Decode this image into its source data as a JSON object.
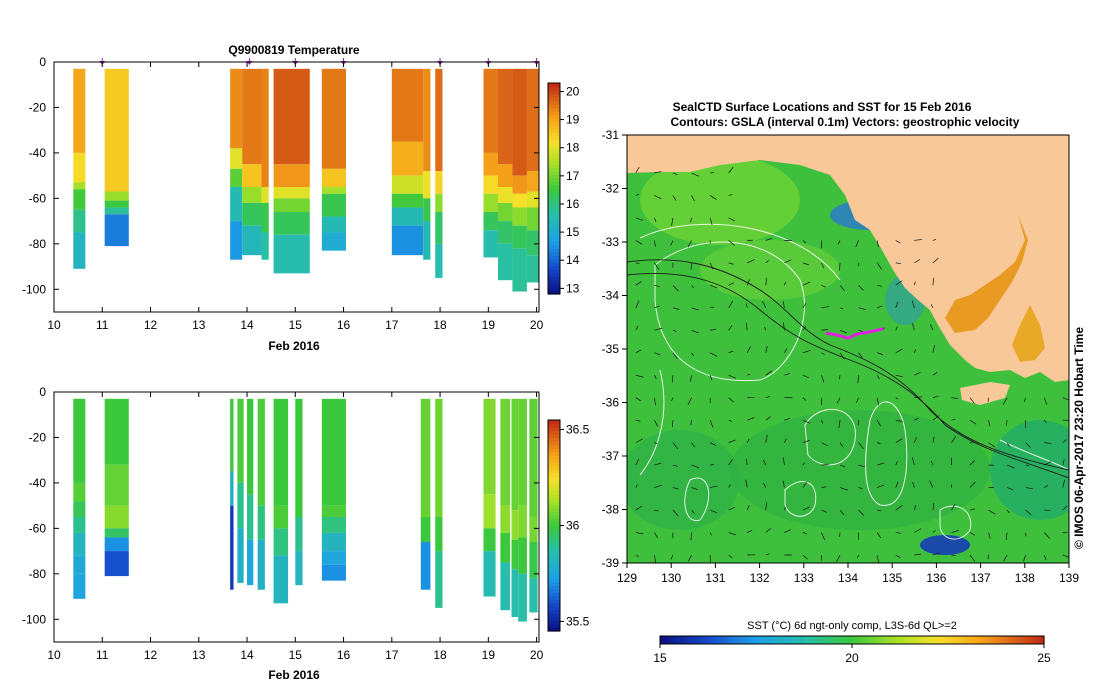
{
  "chart_data": [
    {
      "type": "heatmap",
      "title": "Q9900819  Temperature",
      "xlabel": "Feb 2016",
      "ylabel": "",
      "xlim": [
        10,
        20.05
      ],
      "ylim": [
        -110,
        0
      ],
      "x_ticks": [
        10,
        11,
        12,
        13,
        14,
        15,
        16,
        17,
        18,
        19,
        20
      ],
      "y_ticks": [
        0,
        -20,
        -40,
        -60,
        -80,
        -100
      ],
      "profile_markers_x": [
        11.0,
        14.05,
        15.0,
        16.0,
        18.0,
        19.0,
        20.0
      ],
      "colorbar": {
        "min": 12.8,
        "max": 20.3,
        "ticks": [
          13,
          14,
          15,
          16,
          17,
          18,
          19,
          20
        ]
      },
      "profiles": [
        {
          "x0": 10.4,
          "x1": 10.65,
          "max_depth": -91,
          "layers": [
            [
              -3,
              19.0
            ],
            [
              -40,
              18.3
            ],
            [
              -53,
              17.4
            ],
            [
              -56,
              16.6
            ],
            [
              -65,
              15.9
            ],
            [
              -75,
              15.3
            ],
            [
              -91,
              15.0
            ]
          ]
        },
        {
          "x0": 11.05,
          "x1": 11.55,
          "max_depth": -81,
          "layers": [
            [
              -3,
              18.5
            ],
            [
              -57,
              17.3
            ],
            [
              -61,
              16.5
            ],
            [
              -64,
              15.8
            ],
            [
              -67,
              14.3
            ],
            [
              -81,
              14.1
            ]
          ]
        },
        {
          "x0": 13.65,
          "x1": 13.9,
          "max_depth": -87,
          "layers": [
            [
              -3,
              19.3
            ],
            [
              -38,
              18.0
            ],
            [
              -47,
              16.8
            ],
            [
              -55,
              15.5
            ],
            [
              -70,
              14.6
            ],
            [
              -87,
              14.3
            ]
          ]
        },
        {
          "x0": 13.9,
          "x1": 14.3,
          "max_depth": -85,
          "layers": [
            [
              -3,
              19.5
            ],
            [
              -45,
              18.6
            ],
            [
              -55,
              17.3
            ],
            [
              -62,
              16.3
            ],
            [
              -72,
              15.4
            ],
            [
              -85,
              14.8
            ]
          ]
        },
        {
          "x0": 14.3,
          "x1": 14.45,
          "max_depth": -87,
          "layers": [
            [
              -3,
              19.4
            ],
            [
              -55,
              18.0
            ],
            [
              -62,
              16.4
            ],
            [
              -75,
              15.7
            ],
            [
              -87,
              15.2
            ]
          ]
        },
        {
          "x0": 14.55,
          "x1": 15.3,
          "max_depth": -93,
          "layers": [
            [
              -3,
              19.8
            ],
            [
              -45,
              19.2
            ],
            [
              -55,
              18.0
            ],
            [
              -60,
              17.0
            ],
            [
              -66,
              16.3
            ],
            [
              -76,
              15.6
            ],
            [
              -93,
              15.2
            ]
          ]
        },
        {
          "x0": 15.55,
          "x1": 16.05,
          "max_depth": -83,
          "layers": [
            [
              -3,
              19.5
            ],
            [
              -47,
              18.6
            ],
            [
              -55,
              17.4
            ],
            [
              -58,
              16.4
            ],
            [
              -68,
              15.5
            ],
            [
              -75,
              15.0
            ],
            [
              -83,
              14.9
            ]
          ]
        },
        {
          "x0": 17.0,
          "x1": 17.65,
          "max_depth": -85,
          "layers": [
            [
              -3,
              19.5
            ],
            [
              -35,
              18.9
            ],
            [
              -50,
              17.8
            ],
            [
              -58,
              16.6
            ],
            [
              -64,
              15.5
            ],
            [
              -72,
              14.5
            ],
            [
              -85,
              14.0
            ]
          ]
        },
        {
          "x0": 17.65,
          "x1": 17.8,
          "max_depth": -87,
          "layers": [
            [
              -3,
              19.3
            ],
            [
              -48,
              18.1
            ],
            [
              -60,
              16.4
            ],
            [
              -70,
              15.5
            ],
            [
              -87,
              14.6
            ]
          ]
        },
        {
          "x0": 17.9,
          "x1": 18.05,
          "max_depth": -95,
          "layers": [
            [
              -3,
              19.6
            ],
            [
              -48,
              18.4
            ],
            [
              -58,
              17.2
            ],
            [
              -66,
              16.2
            ],
            [
              -80,
              15.6
            ],
            [
              -95,
              15.3
            ]
          ]
        },
        {
          "x0": 18.9,
          "x1": 19.2,
          "max_depth": -86,
          "layers": [
            [
              -3,
              19.5
            ],
            [
              -40,
              19.1
            ],
            [
              -50,
              18.3
            ],
            [
              -58,
              17.3
            ],
            [
              -66,
              16.3
            ],
            [
              -74,
              15.6
            ],
            [
              -86,
              15.3
            ]
          ]
        },
        {
          "x0": 19.2,
          "x1": 19.5,
          "max_depth": -96,
          "layers": [
            [
              -3,
              19.7
            ],
            [
              -45,
              19.1
            ],
            [
              -55,
              18.1
            ],
            [
              -62,
              17.0
            ],
            [
              -70,
              16.2
            ],
            [
              -80,
              15.7
            ],
            [
              -96,
              15.5
            ]
          ]
        },
        {
          "x0": 19.5,
          "x1": 19.8,
          "max_depth": -101,
          "layers": [
            [
              -3,
              19.8
            ],
            [
              -50,
              19.2
            ],
            [
              -58,
              18.2
            ],
            [
              -64,
              17.2
            ],
            [
              -72,
              16.3
            ],
            [
              -82,
              15.8
            ],
            [
              -101,
              15.5
            ]
          ]
        },
        {
          "x0": 19.8,
          "x1": 20.05,
          "max_depth": -97,
          "layers": [
            [
              -3,
              19.6
            ],
            [
              -48,
              19.0
            ],
            [
              -57,
              18.0
            ],
            [
              -64,
              17.0
            ],
            [
              -74,
              16.2
            ],
            [
              -85,
              15.8
            ],
            [
              -97,
              15.6
            ]
          ]
        }
      ]
    },
    {
      "type": "heatmap",
      "title": "",
      "xlabel": "Feb 2016",
      "ylabel": "",
      "xlim": [
        10,
        20.05
      ],
      "ylim": [
        -110,
        0
      ],
      "x_ticks": [
        10,
        11,
        12,
        13,
        14,
        15,
        16,
        17,
        18,
        19,
        20
      ],
      "y_ticks": [
        0,
        -20,
        -40,
        -60,
        -80,
        -100
      ],
      "colorbar": {
        "min": 35.45,
        "max": 36.55,
        "ticks": [
          35.5,
          36,
          36.5
        ],
        "tick_labels": [
          "35.5",
          "36",
          "36.5"
        ]
      },
      "profiles": [
        {
          "x0": 10.4,
          "x1": 10.65,
          "max_depth": -91,
          "layers": [
            [
              -3,
              36.0
            ],
            [
              -40,
              36.03
            ],
            [
              -48,
              35.97
            ],
            [
              -55,
              35.9
            ],
            [
              -62,
              35.82
            ],
            [
              -72,
              35.77
            ],
            [
              -80,
              35.75
            ],
            [
              -91,
              35.74
            ]
          ]
        },
        {
          "x0": 11.05,
          "x1": 11.55,
          "max_depth": -81,
          "layers": [
            [
              -3,
              36.0
            ],
            [
              -32,
              36.05
            ],
            [
              -50,
              36.09
            ],
            [
              -60,
              35.95
            ],
            [
              -64,
              35.7
            ],
            [
              -70,
              35.6
            ],
            [
              -81,
              35.55
            ]
          ]
        },
        {
          "x0": 13.65,
          "x1": 13.72,
          "max_depth": -87,
          "layers": [
            [
              -3,
              36.0
            ],
            [
              -35,
              35.8
            ],
            [
              -50,
              35.55
            ],
            [
              -87,
              35.5
            ]
          ]
        },
        {
          "x0": 13.8,
          "x1": 13.93,
          "max_depth": -84,
          "layers": [
            [
              -3,
              36.02
            ],
            [
              -40,
              35.9
            ],
            [
              -60,
              35.8
            ],
            [
              -84,
              35.75
            ]
          ]
        },
        {
          "x0": 14.0,
          "x1": 14.13,
          "max_depth": -85,
          "layers": [
            [
              -3,
              36.0
            ],
            [
              -45,
              35.9
            ],
            [
              -65,
              35.75
            ],
            [
              -85,
              35.72
            ]
          ]
        },
        {
          "x0": 14.22,
          "x1": 14.37,
          "max_depth": -87,
          "layers": [
            [
              -3,
              36.02
            ],
            [
              -50,
              35.92
            ],
            [
              -65,
              35.8
            ],
            [
              -87,
              35.76
            ]
          ]
        },
        {
          "x0": 14.55,
          "x1": 14.85,
          "max_depth": -93,
          "layers": [
            [
              -3,
              36.0
            ],
            [
              -50,
              36.02
            ],
            [
              -60,
              35.92
            ],
            [
              -72,
              35.82
            ],
            [
              -93,
              35.78
            ]
          ]
        },
        {
          "x0": 15.0,
          "x1": 15.15,
          "max_depth": -85,
          "layers": [
            [
              -3,
              36.0
            ],
            [
              -55,
              35.9
            ],
            [
              -70,
              35.82
            ],
            [
              -85,
              35.78
            ]
          ]
        },
        {
          "x0": 15.55,
          "x1": 16.05,
          "max_depth": -83,
          "layers": [
            [
              -3,
              36.0
            ],
            [
              -50,
              36.02
            ],
            [
              -55,
              35.92
            ],
            [
              -62,
              35.82
            ],
            [
              -70,
              35.75
            ],
            [
              -76,
              35.7
            ],
            [
              -83,
              35.68
            ]
          ]
        },
        {
          "x0": 17.6,
          "x1": 17.8,
          "max_depth": -87,
          "layers": [
            [
              -3,
              36.05
            ],
            [
              -55,
              36.0
            ],
            [
              -66,
              35.7
            ],
            [
              -87,
              35.55
            ]
          ]
        },
        {
          "x0": 17.9,
          "x1": 18.05,
          "max_depth": -95,
          "layers": [
            [
              -3,
              36.06
            ],
            [
              -55,
              36.0
            ],
            [
              -70,
              35.9
            ],
            [
              -95,
              35.88
            ]
          ]
        },
        {
          "x0": 18.9,
          "x1": 19.15,
          "max_depth": -90,
          "layers": [
            [
              -3,
              36.08
            ],
            [
              -45,
              36.12
            ],
            [
              -60,
              36.0
            ],
            [
              -70,
              35.85
            ],
            [
              -90,
              35.78
            ]
          ]
        },
        {
          "x0": 19.25,
          "x1": 19.45,
          "max_depth": -96,
          "layers": [
            [
              -3,
              36.06
            ],
            [
              -50,
              36.1
            ],
            [
              -62,
              36.0
            ],
            [
              -75,
              35.86
            ],
            [
              -96,
              35.8
            ]
          ]
        },
        {
          "x0": 19.48,
          "x1": 19.62,
          "max_depth": -99,
          "layers": [
            [
              -3,
              36.05
            ],
            [
              -52,
              36.1
            ],
            [
              -65,
              36.0
            ],
            [
              -78,
              35.86
            ],
            [
              -99,
              35.8
            ]
          ]
        },
        {
          "x0": 19.62,
          "x1": 19.8,
          "max_depth": -101,
          "layers": [
            [
              -3,
              36.05
            ],
            [
              -50,
              36.08
            ],
            [
              -64,
              36.0
            ],
            [
              -80,
              35.87
            ],
            [
              -101,
              35.82
            ]
          ]
        },
        {
          "x0": 19.85,
          "x1": 20.02,
          "max_depth": -97,
          "layers": [
            [
              -3,
              36.04
            ],
            [
              -55,
              36.07
            ],
            [
              -66,
              35.98
            ],
            [
              -82,
              35.87
            ],
            [
              -97,
              35.83
            ]
          ]
        }
      ]
    },
    {
      "type": "heatmap",
      "title": "SealCTD Surface Locations and SST for 15 Feb 2016",
      "subtitle": "Contours: GSLA (interval 0.1m) Vectors: geostrophic velocity",
      "xlabel": "",
      "ylabel": "",
      "xlim": [
        129,
        139
      ],
      "ylim": [
        -39,
        -31
      ],
      "x_ticks": [
        129,
        130,
        131,
        132,
        133,
        134,
        135,
        136,
        137,
        138,
        139
      ],
      "y_ticks": [
        -31,
        -32,
        -33,
        -34,
        -35,
        -36,
        -37,
        -38,
        -39
      ],
      "side_label": "© IMOS 06-Apr-2017 23:20 Hobart Time",
      "colorbar": {
        "label": "SST (°C) 6d ngt-only comp, L3S-6d QL>=2",
        "min": 15,
        "max": 25,
        "ticks": [
          15,
          20,
          25
        ]
      },
      "seal_track": [
        [
          133.5,
          -34.7
        ],
        [
          133.8,
          -34.75
        ],
        [
          134.0,
          -34.8
        ],
        [
          134.2,
          -34.72
        ],
        [
          134.5,
          -34.68
        ],
        [
          134.8,
          -34.62
        ]
      ]
    }
  ]
}
